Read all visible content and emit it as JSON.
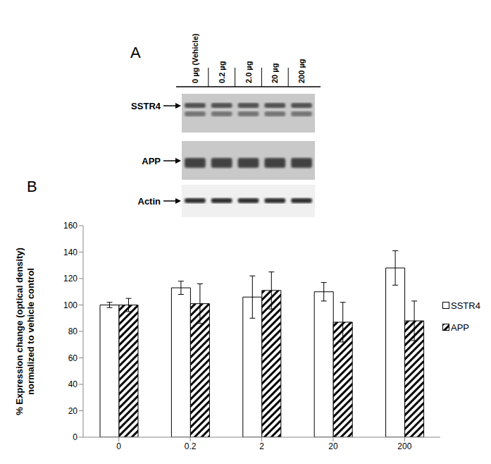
{
  "blot": {
    "panel_label": "A",
    "lanes": [
      "0 µg  (Vehicle)",
      "0.2 µg",
      "2.0 µg",
      "20 µg",
      "200 µg"
    ],
    "rows": [
      "SSTR4",
      "APP",
      "Actin"
    ]
  },
  "chart_data": {
    "type": "bar",
    "panel_label": "B",
    "y_label": "% Expression change (optical density) normalized to vehicle control",
    "categories": [
      "0",
      "0.2",
      "2",
      "20",
      "200"
    ],
    "series": [
      {
        "name": "SSTR4",
        "color": "#ffffff",
        "values": [
          100,
          113,
          106,
          110,
          128
        ],
        "errors": [
          2,
          5,
          16,
          7,
          13
        ]
      },
      {
        "name": "APP",
        "color": "hatched",
        "values": [
          100,
          101,
          111,
          87,
          88
        ],
        "errors": [
          5,
          15,
          14,
          15,
          15
        ]
      }
    ],
    "ylim": [
      0,
      160
    ],
    "yticks": [
      0,
      20,
      40,
      60,
      80,
      100,
      120,
      140,
      160
    ],
    "grid": false,
    "legend": "right"
  }
}
